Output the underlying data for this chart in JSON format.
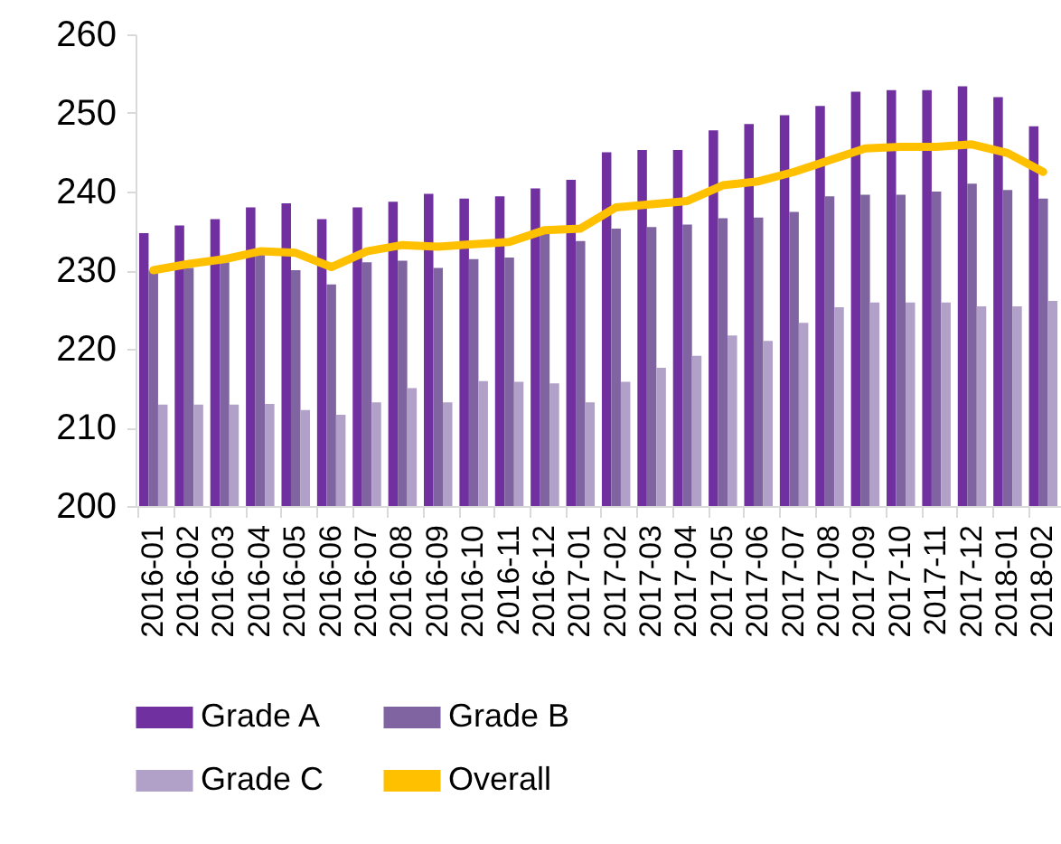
{
  "chart_data": {
    "type": "bar",
    "categories": [
      "2016-01",
      "2016-02",
      "2016-03",
      "2016-04",
      "2016-05",
      "2016-06",
      "2016-07",
      "2016-08",
      "2016-09",
      "2016-10",
      "2016-11",
      "2016-12",
      "2017-01",
      "2017-02",
      "2017-03",
      "2017-04",
      "2017-05",
      "2017-06",
      "2017-07",
      "2017-08",
      "2017-09",
      "2017-10",
      "2017-11",
      "2017-12",
      "2018-01",
      "2018-02"
    ],
    "series": [
      {
        "name": "Grade A",
        "color": "#7030a0",
        "values": [
          234.7,
          235.7,
          236.5,
          238,
          238.5,
          236.5,
          238,
          238.7,
          239.7,
          239.1,
          239.4,
          240.4,
          241.5,
          245,
          245.3,
          245.3,
          247.8,
          248.6,
          249.7,
          250.9,
          252.7,
          252.9,
          252.9,
          253.4,
          252,
          248.3
        ]
      },
      {
        "name": "Grade B",
        "color": "#8064a2",
        "values": [
          230,
          230.3,
          231,
          232,
          230,
          228.2,
          231,
          231.2,
          230.3,
          231.4,
          231.6,
          234.9,
          233.7,
          235.3,
          235.5,
          235.8,
          236.6,
          236.7,
          237.4,
          239.4,
          239.6,
          239.6,
          240,
          241,
          240.2,
          239.1
        ]
      },
      {
        "name": "Grade C",
        "color": "#b1a0c7",
        "values": [
          212.9,
          212.9,
          212.9,
          213,
          212.2,
          211.6,
          213.2,
          215,
          213.2,
          215.9,
          215.8,
          215.6,
          213.2,
          215.8,
          217.6,
          219.1,
          221.7,
          221,
          223.3,
          225.3,
          225.9,
          225.9,
          225.9,
          225.4,
          225.4,
          226.1
        ]
      },
      {
        "name": "Overall",
        "type": "line",
        "color": "#ffc000",
        "values": [
          230,
          230.8,
          231.4,
          232.4,
          232.2,
          230.4,
          232.4,
          233.2,
          233,
          233.3,
          233.6,
          235.1,
          235.3,
          238,
          238.4,
          238.8,
          240.8,
          241.3,
          242.5,
          244,
          245.5,
          245.7,
          245.7,
          246,
          244.9,
          242.5
        ]
      }
    ],
    "ylim": [
      200,
      260
    ],
    "yticks": [
      200,
      210,
      220,
      230,
      240,
      250,
      260
    ],
    "grid": false,
    "legend": "bottom"
  }
}
